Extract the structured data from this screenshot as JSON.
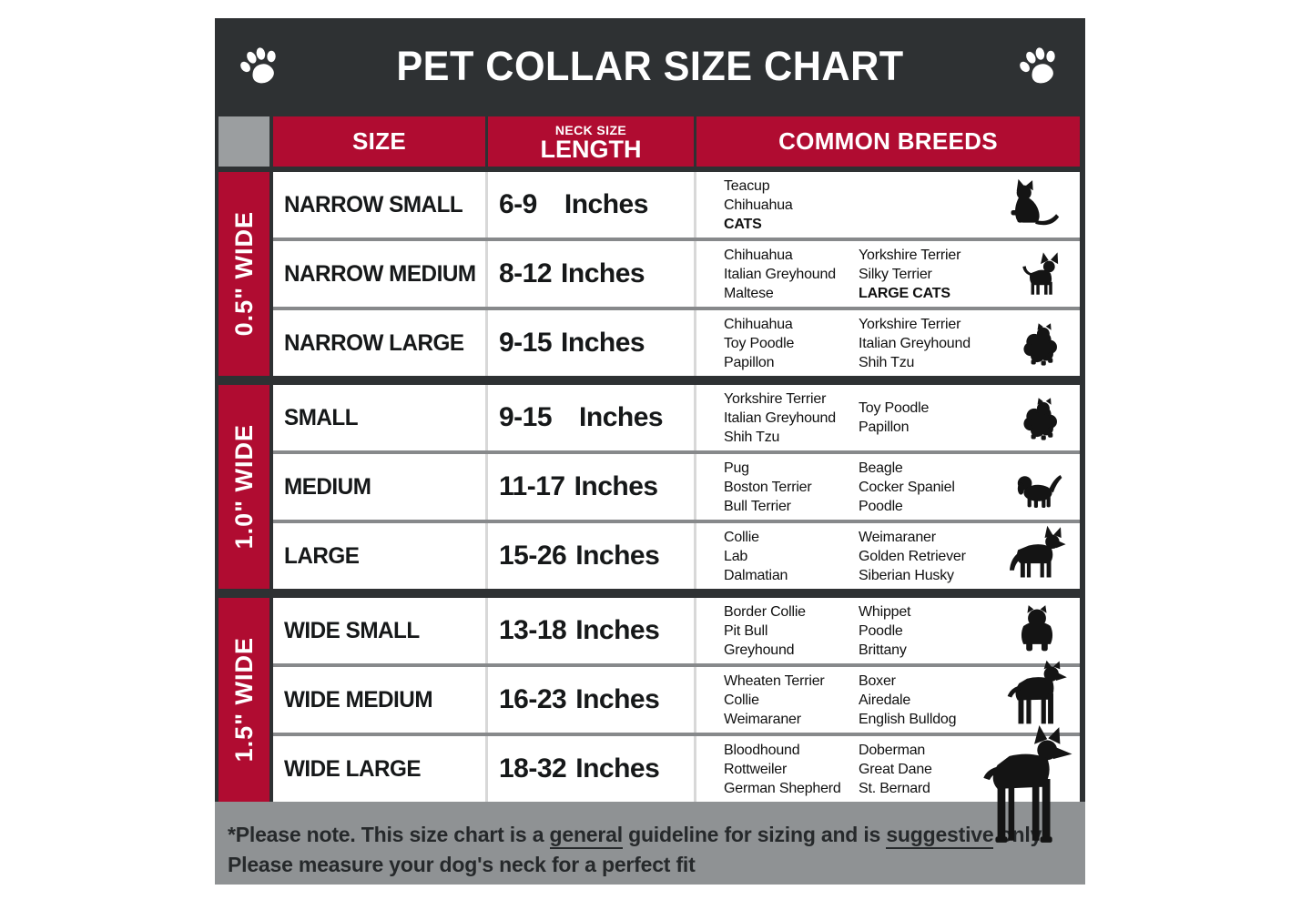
{
  "title": "PET COLLAR SIZE CHART",
  "header": {
    "size_label": "SIZE",
    "neck_size_label": "NECK SIZE",
    "length_label": "LENGTH",
    "breeds_label": "COMMON BREEDS"
  },
  "groups": [
    {
      "width_label": "0.5\" WIDE",
      "row_indexes": [
        0,
        1,
        2
      ]
    },
    {
      "width_label": "1.0\" WIDE",
      "row_indexes": [
        3,
        4,
        5
      ]
    },
    {
      "width_label": "1.5\" WIDE",
      "row_indexes": [
        6,
        7,
        8
      ]
    }
  ],
  "rows": [
    {
      "size": "NARROW SMALL",
      "neck_range": "6-9",
      "unit": "Inches",
      "gap": "lg",
      "breeds_col1": [
        {
          "t": "Teacup"
        },
        {
          "t": "Chihuahua"
        },
        {
          "t": "CATS",
          "b": true
        }
      ],
      "breeds_col2": [],
      "icon": "cat-icon"
    },
    {
      "size": "NARROW MEDIUM",
      "neck_range": "8-12",
      "unit": "Inches",
      "breeds_col1": [
        {
          "t": "Chihuahua"
        },
        {
          "t": "Italian Greyhound"
        },
        {
          "t": "Maltese"
        }
      ],
      "breeds_col2": [
        {
          "t": "Yorkshire Terrier"
        },
        {
          "t": "Silky Terrier"
        },
        {
          "t": "LARGE CATS",
          "b": true
        }
      ],
      "icon": "chihuahua-icon"
    },
    {
      "size": "NARROW LARGE",
      "neck_range": "9-15",
      "unit": "Inches",
      "breeds_col1": [
        {
          "t": "Chihuahua"
        },
        {
          "t": "Toy Poodle"
        },
        {
          "t": "Papillon"
        }
      ],
      "breeds_col2": [
        {
          "t": "Yorkshire Terrier"
        },
        {
          "t": "Italian Greyhound"
        },
        {
          "t": "Shih Tzu"
        }
      ],
      "icon": "pomeranian-icon"
    },
    {
      "size": "SMALL",
      "neck_range": "9-15",
      "unit": "Inches",
      "gap": "lg",
      "breeds_col1": [
        {
          "t": "Yorkshire Terrier"
        },
        {
          "t": "Italian Greyhound"
        },
        {
          "t": "Shih Tzu"
        }
      ],
      "breeds_col2": [
        {
          "t": "Toy Poodle"
        },
        {
          "t": "Papillon"
        }
      ],
      "icon": "pomeranian-icon"
    },
    {
      "size": "MEDIUM",
      "neck_range": "11-17",
      "unit": "Inches",
      "breeds_col1": [
        {
          "t": "Pug"
        },
        {
          "t": "Boston Terrier"
        },
        {
          "t": "Bull Terrier"
        }
      ],
      "breeds_col2": [
        {
          "t": "Beagle"
        },
        {
          "t": "Cocker Spaniel"
        },
        {
          "t": "Poodle"
        }
      ],
      "icon": "puppy-icon"
    },
    {
      "size": "LARGE",
      "neck_range": "15-26",
      "unit": "Inches",
      "breeds_col1": [
        {
          "t": "Collie"
        },
        {
          "t": "Lab"
        },
        {
          "t": "Dalmatian"
        }
      ],
      "breeds_col2": [
        {
          "t": "Weimaraner"
        },
        {
          "t": "Golden Retriever"
        },
        {
          "t": "Siberian Husky"
        }
      ],
      "icon": "shepherd-icon"
    },
    {
      "size": "WIDE SMALL",
      "neck_range": "13-18",
      "unit": "Inches",
      "breeds_col1": [
        {
          "t": "Border Collie"
        },
        {
          "t": "Pit Bull"
        },
        {
          "t": "Greyhound"
        }
      ],
      "breeds_col2": [
        {
          "t": "Whippet"
        },
        {
          "t": "Poodle"
        },
        {
          "t": "Brittany"
        }
      ],
      "icon": "bulldog-icon"
    },
    {
      "size": "WIDE MEDIUM",
      "neck_range": "16-23",
      "unit": "Inches",
      "breeds_col1": [
        {
          "t": "Wheaten Terrier"
        },
        {
          "t": "Collie"
        },
        {
          "t": "Weimaraner"
        }
      ],
      "breeds_col2": [
        {
          "t": "Boxer"
        },
        {
          "t": "Airedale"
        },
        {
          "t": "English Bulldog"
        }
      ],
      "icon": "pitbull-icon"
    },
    {
      "size": "WIDE LARGE",
      "neck_range": "18-32",
      "unit": "Inches",
      "breeds_col1": [
        {
          "t": "Bloodhound"
        },
        {
          "t": "Rottweiler"
        },
        {
          "t": "German Shepherd"
        }
      ],
      "breeds_col2": [
        {
          "t": "Doberman"
        },
        {
          "t": "Great Dane"
        },
        {
          "t": "St. Bernard"
        }
      ],
      "icon": "doberman-icon"
    }
  ],
  "footer": {
    "line1_segments": [
      {
        "t": "*Please note. This size chart is a "
      },
      {
        "t": "general",
        "u": true
      },
      {
        "t": " guideline for sizing and is "
      },
      {
        "t": "suggestive",
        "u": true
      },
      {
        "t": " only."
      }
    ],
    "line2": "Please measure your dog's neck for a perfect fit"
  },
  "colors": {
    "dark": "#2e3133",
    "red": "#b00c31",
    "corner_gray": "#9b9ea0",
    "footer_gray": "#8f9294",
    "row_divider": "#87898b",
    "column_divider": "#d8d8d8"
  }
}
